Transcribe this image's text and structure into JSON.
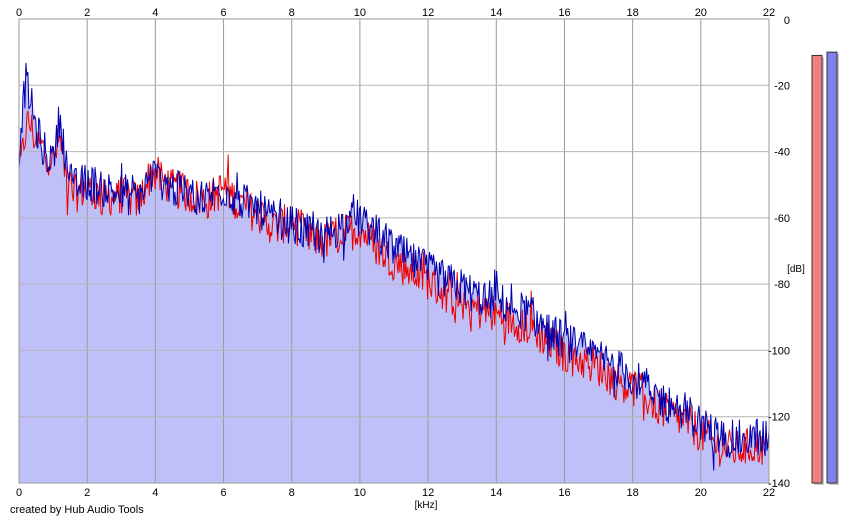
{
  "footer": {
    "credit": "created by Hub Audio Tools"
  },
  "chart_data": {
    "type": "line",
    "x_unit_label": "[kHz]",
    "y_unit_label": "[dB]",
    "xlim": [
      0,
      22
    ],
    "ylim": [
      -140,
      0
    ],
    "x_ticks": [
      0,
      2,
      4,
      6,
      8,
      10,
      12,
      14,
      16,
      18,
      20,
      22
    ],
    "y_ticks": [
      0,
      -20,
      -40,
      -60,
      -80,
      -100,
      -120,
      -140
    ],
    "y_tick_labels": [
      "0",
      "-20",
      "-40",
      "-60",
      "-80",
      "-100",
      "-120",
      "-140"
    ],
    "grid": true,
    "fill_color": "#c0c0f8",
    "series": [
      {
        "color": "#ee0000",
        "meter_color": "#f08080",
        "meter_level_db": -11,
        "x": [
          0,
          0.1,
          0.2,
          0.3,
          0.5,
          0.7,
          1.0,
          1.2,
          1.4,
          1.6,
          2.0,
          2.5,
          3.0,
          3.5,
          3.9,
          4.5,
          5.0,
          5.5,
          6.0,
          6.5,
          7.0,
          7.5,
          8.0,
          8.5,
          9.0,
          9.5,
          10.0,
          10.5,
          11.0,
          11.5,
          12.0,
          12.5,
          13.0,
          13.5,
          14.0,
          14.5,
          15.0,
          15.5,
          16.0,
          16.5,
          17.0,
          17.5,
          18.0,
          18.5,
          19.0,
          19.5,
          20.0,
          20.5,
          21.0,
          21.5,
          22.0
        ],
        "y": [
          -45,
          -40,
          -32,
          -30,
          -36,
          -38,
          -42,
          -35,
          -47,
          -52,
          -50,
          -53,
          -52,
          -54,
          -45,
          -50,
          -52,
          -54,
          -50,
          -55,
          -58,
          -62,
          -60,
          -65,
          -66,
          -64,
          -62,
          -68,
          -72,
          -75,
          -78,
          -82,
          -84,
          -87,
          -88,
          -90,
          -92,
          -96,
          -100,
          -102,
          -104,
          -108,
          -110,
          -114,
          -118,
          -120,
          -124,
          -128,
          -129,
          -128,
          -128
        ]
      },
      {
        "color": "#0000b0",
        "meter_color": "#8080f0",
        "meter_level_db": -10,
        "x": [
          0,
          0.1,
          0.2,
          0.3,
          0.5,
          0.7,
          1.0,
          1.2,
          1.4,
          1.6,
          2.0,
          2.5,
          3.0,
          3.5,
          3.9,
          4.5,
          5.0,
          5.5,
          6.0,
          6.5,
          7.0,
          7.5,
          8.0,
          8.5,
          9.0,
          9.5,
          10.0,
          10.5,
          11.0,
          11.5,
          12.0,
          12.5,
          13.0,
          13.5,
          14.0,
          14.5,
          15.0,
          15.5,
          16.0,
          16.5,
          17.0,
          17.5,
          18.0,
          18.5,
          19.0,
          19.5,
          20.0,
          20.5,
          21.0,
          21.5,
          22.0
        ],
        "y": [
          -42,
          -28,
          -20,
          -24,
          -34,
          -40,
          -44,
          -30,
          -46,
          -52,
          -50,
          -52,
          -54,
          -55,
          -48,
          -52,
          -54,
          -55,
          -52,
          -56,
          -58,
          -62,
          -63,
          -66,
          -66,
          -63,
          -61,
          -66,
          -70,
          -74,
          -77,
          -80,
          -82,
          -85,
          -86,
          -88,
          -90,
          -95,
          -98,
          -101,
          -103,
          -106,
          -109,
          -113,
          -117,
          -119,
          -123,
          -127,
          -128,
          -127,
          -127
        ]
      }
    ]
  }
}
